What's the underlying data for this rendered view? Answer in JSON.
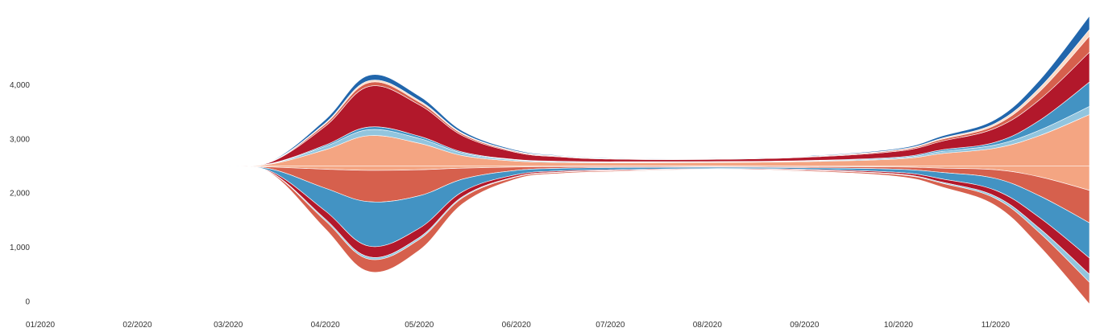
{
  "chart_data": {
    "type": "area",
    "subtype": "streamgraph",
    "title": "",
    "xlabel": "",
    "ylabel": "",
    "y_axis": {
      "ticks": [
        0,
        1000,
        2000,
        3000,
        4000
      ],
      "tick_labels": [
        "0",
        "1,000",
        "2,000",
        "3,000",
        "4,000"
      ],
      "range": [
        0,
        5000
      ]
    },
    "x_axis": {
      "ticks": [
        "2020-01-01",
        "2020-02-01",
        "2020-03-01",
        "2020-04-01",
        "2020-05-01",
        "2020-06-01",
        "2020-07-01",
        "2020-08-01",
        "2020-09-01",
        "2020-10-01",
        "2020-11-01"
      ],
      "tick_labels": [
        "01/2020",
        "02/2020",
        "03/2020",
        "04/2020",
        "05/2020",
        "06/2020",
        "07/2020",
        "08/2020",
        "09/2020",
        "10/2020",
        "11/2020"
      ],
      "range": [
        "2020-01-01",
        "2020-12-01"
      ]
    },
    "grid": false,
    "legend": "none",
    "baseline_value": 2500,
    "x": [
      "2020-03-01",
      "2020-03-15",
      "2020-04-01",
      "2020-04-15",
      "2020-05-01",
      "2020-05-15",
      "2020-06-01",
      "2020-06-15",
      "2020-07-01",
      "2020-08-01",
      "2020-09-01",
      "2020-10-01",
      "2020-10-15",
      "2020-11-01",
      "2020-11-15",
      "2020-12-01"
    ],
    "series_above": [
      {
        "color": "#f4a582",
        "values": [
          0,
          40,
          300,
          560,
          420,
          190,
          90,
          65,
          60,
          65,
          80,
          130,
          230,
          330,
          560,
          950
        ]
      },
      {
        "color": "#92c5de",
        "values": [
          0,
          8,
          60,
          110,
          90,
          45,
          20,
          15,
          12,
          10,
          12,
          20,
          40,
          60,
          100,
          150
        ]
      },
      {
        "color": "#4393c3",
        "values": [
          0,
          4,
          25,
          50,
          40,
          20,
          10,
          8,
          6,
          6,
          8,
          15,
          30,
          50,
          180,
          450
        ]
      },
      {
        "color": "#b2182b",
        "values": [
          0,
          30,
          350,
          750,
          580,
          300,
          130,
          80,
          50,
          40,
          60,
          110,
          160,
          260,
          380,
          550
        ]
      },
      {
        "color": "#d6604d",
        "values": [
          0,
          6,
          40,
          70,
          50,
          30,
          15,
          12,
          10,
          8,
          10,
          20,
          35,
          55,
          150,
          300
        ]
      },
      {
        "color": "#fddbc7",
        "values": [
          0,
          3,
          20,
          35,
          30,
          15,
          8,
          6,
          5,
          4,
          5,
          10,
          20,
          35,
          70,
          120
        ]
      },
      {
        "color": "#2166ac",
        "values": [
          0,
          8,
          60,
          100,
          80,
          40,
          20,
          12,
          10,
          8,
          10,
          20,
          40,
          70,
          140,
          250
        ]
      }
    ],
    "series_below": [
      {
        "color": "#f4a582",
        "values": [
          0,
          20,
          60,
          80,
          70,
          40,
          20,
          12,
          10,
          8,
          12,
          20,
          40,
          70,
          200,
          450
        ]
      },
      {
        "color": "#d6604d",
        "values": [
          0,
          40,
          350,
          580,
          480,
          200,
          60,
          30,
          20,
          15,
          20,
          40,
          80,
          160,
          350,
          600
        ]
      },
      {
        "color": "#4393c3",
        "values": [
          0,
          50,
          420,
          820,
          600,
          230,
          80,
          50,
          40,
          25,
          30,
          60,
          120,
          220,
          400,
          650
        ]
      },
      {
        "color": "#b2182b",
        "values": [
          0,
          20,
          150,
          200,
          170,
          90,
          35,
          20,
          15,
          10,
          15,
          30,
          60,
          110,
          200,
          300
        ]
      },
      {
        "color": "#92c5de",
        "values": [
          0,
          5,
          30,
          40,
          35,
          20,
          8,
          6,
          5,
          4,
          5,
          10,
          20,
          40,
          80,
          150
        ]
      },
      {
        "color": "#d6604d",
        "values": [
          0,
          15,
          150,
          230,
          200,
          110,
          35,
          20,
          15,
          10,
          15,
          35,
          70,
          130,
          250,
          400
        ]
      }
    ]
  }
}
